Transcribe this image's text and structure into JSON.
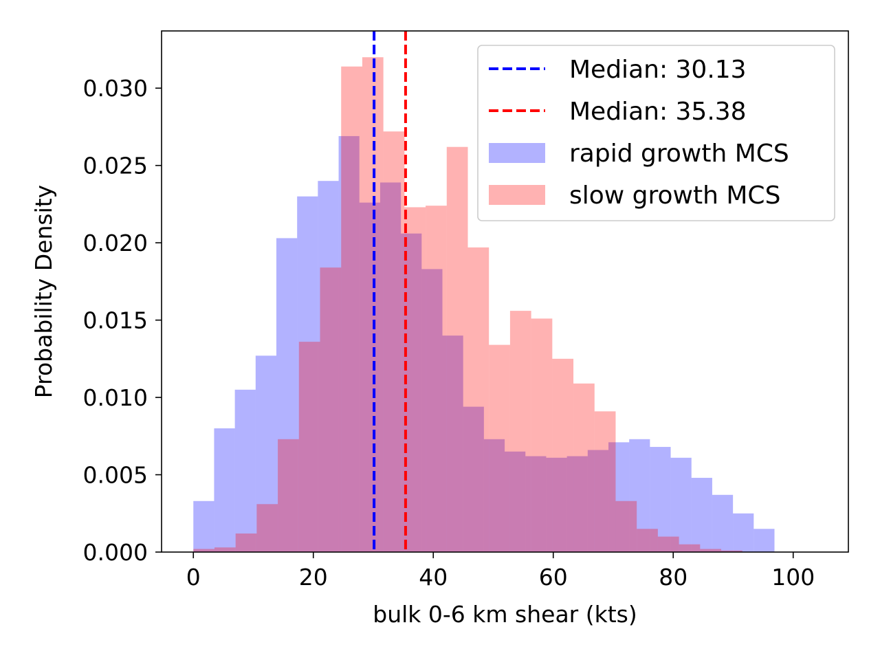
{
  "chart_data": {
    "type": "bar",
    "title": "",
    "xlabel": "bulk 0-6 km shear (kts)",
    "ylabel": "Probability Density",
    "xlim": [
      -5.3,
      109.2
    ],
    "ylim": [
      0,
      0.0337
    ],
    "xticks": [
      0,
      20,
      40,
      60,
      80,
      100
    ],
    "xtick_labels": [
      "0",
      "20",
      "40",
      "60",
      "80",
      "100"
    ],
    "yticks": [
      0,
      0.005,
      0.01,
      0.015,
      0.02,
      0.025,
      0.03
    ],
    "ytick_labels": [
      "0.000",
      "0.005",
      "0.010",
      "0.015",
      "0.020",
      "0.025",
      "0.030"
    ],
    "grid": false,
    "legend_position": "upper right",
    "series": [
      {
        "name": "rapid growth MCS",
        "kind": "histogram",
        "color": "#0000ff",
        "alpha": 0.3,
        "bin_edges": [
          0.0,
          3.46,
          6.92,
          10.38,
          13.84,
          17.3,
          20.76,
          24.22,
          27.68,
          31.14,
          34.6,
          38.06,
          41.52,
          44.98,
          48.44,
          51.9,
          55.36,
          58.82,
          62.28,
          65.74,
          69.2,
          72.66,
          76.12,
          79.58,
          83.04,
          86.5,
          89.96,
          93.42
        ],
        "values": [
          0.0033,
          0.008,
          0.0105,
          0.0127,
          0.0203,
          0.023,
          0.024,
          0.0269,
          0.0226,
          0.0239,
          0.0206,
          0.0183,
          0.014,
          0.0094,
          0.0073,
          0.0065,
          0.0062,
          0.0061,
          0.0062,
          0.0066,
          0.0071,
          0.0073,
          0.0068,
          0.0061,
          0.0048,
          0.0037,
          0.0025,
          0.0015
        ]
      },
      {
        "name": "slow growth MCS",
        "kind": "histogram",
        "color": "#ff0000",
        "alpha": 0.3,
        "bin_edges": [
          0.0,
          3.52,
          7.04,
          10.56,
          14.08,
          17.6,
          21.12,
          24.64,
          28.16,
          31.68,
          35.2,
          38.72,
          42.24,
          45.76,
          49.28,
          52.8,
          56.32,
          59.84,
          63.36,
          66.88,
          70.4,
          73.92,
          77.44,
          80.96,
          84.48,
          88.0
        ],
        "values": [
          0.0002,
          0.0003,
          0.0012,
          0.0031,
          0.0073,
          0.0136,
          0.0184,
          0.0314,
          0.032,
          0.0272,
          0.0223,
          0.0224,
          0.0262,
          0.0197,
          0.0134,
          0.0156,
          0.0151,
          0.0125,
          0.0109,
          0.0091,
          0.0033,
          0.0015,
          0.001,
          0.0005,
          0.0002,
          0.0001
        ]
      }
    ],
    "median_lines": [
      {
        "label": "Median: 30.13",
        "x": 30.13,
        "color": "#0000ff",
        "style": "dashed"
      },
      {
        "label": "Median: 35.38",
        "x": 35.38,
        "color": "#ff0000",
        "style": "dashed"
      }
    ],
    "legend": [
      {
        "label": "Median: 30.13",
        "kind": "line",
        "color": "#0000ff"
      },
      {
        "label": "Median: 35.38",
        "kind": "line",
        "color": "#ff0000"
      },
      {
        "label": "rapid growth MCS",
        "kind": "patch",
        "color": "#0000ff",
        "alpha": 0.3
      },
      {
        "label": "slow growth MCS",
        "kind": "patch",
        "color": "#ff0000",
        "alpha": 0.3
      }
    ]
  }
}
